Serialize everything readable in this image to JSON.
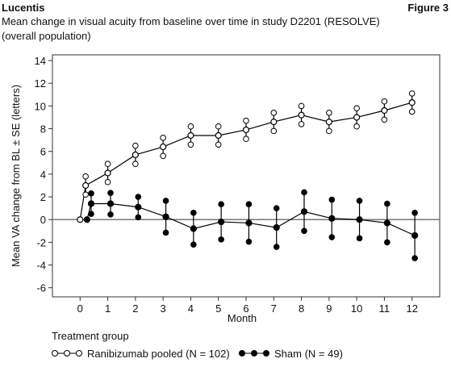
{
  "header": {
    "left": "Lucentis",
    "right": "Figure 3"
  },
  "chart_data": {
    "type": "errorbar-line",
    "title": "Mean change in visual acuity from baseline over time in study D2201 (RESOLVE)",
    "subtitle": "(overall population)",
    "x_label": "Month",
    "y_label": "Mean VA change from BL ± SE (letters)",
    "legend_title": "Treatment group",
    "xlim": [
      -1,
      13
    ],
    "ylim": [
      -6.8,
      14.5
    ],
    "xticks": [
      0,
      1,
      2,
      3,
      4,
      5,
      6,
      7,
      8,
      9,
      10,
      11,
      12
    ],
    "yticks": [
      14,
      12,
      10,
      8,
      6,
      4,
      2,
      0,
      -2,
      -4,
      -6
    ],
    "reference_line": 0,
    "series": [
      {
        "name": "Ranibizumab pooled (N = 102)",
        "color": "#000000",
        "marker": "open",
        "x": [
          0,
          0.2,
          1,
          2,
          3,
          4,
          5,
          6,
          7,
          8,
          9,
          10,
          11,
          12
        ],
        "values": [
          0,
          3.0,
          4.1,
          5.7,
          6.4,
          7.4,
          7.4,
          7.9,
          8.6,
          9.2,
          8.6,
          9.0,
          9.6,
          10.3
        ],
        "errors": [
          0,
          0.8,
          0.8,
          0.8,
          0.8,
          0.8,
          0.8,
          0.8,
          0.8,
          0.8,
          0.8,
          0.8,
          0.8,
          0.8
        ]
      },
      {
        "name": "Sham (N = 49)",
        "color": "#000000",
        "marker": "filled",
        "x": [
          0.25,
          0.4,
          1.1,
          2.1,
          3.1,
          4.1,
          5.1,
          6.1,
          7.1,
          8.1,
          9.1,
          10.1,
          11.1,
          12.1
        ],
        "values": [
          0,
          1.4,
          1.4,
          1.1,
          0.25,
          -0.8,
          -0.2,
          -0.3,
          -0.7,
          0.7,
          0.1,
          0,
          -0.3,
          -1.4
        ],
        "errors": [
          0,
          0.9,
          0.95,
          0.9,
          1.4,
          1.4,
          1.55,
          1.65,
          1.7,
          1.7,
          1.65,
          1.65,
          1.7,
          2.0
        ]
      }
    ]
  }
}
